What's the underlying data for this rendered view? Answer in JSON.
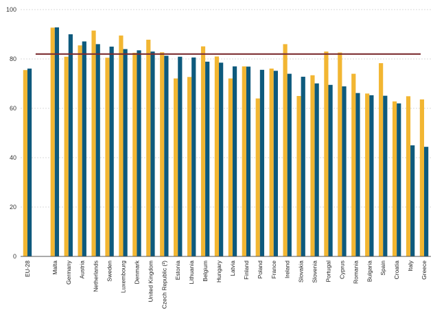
{
  "chart_data": {
    "type": "bar",
    "ylim": [
      0,
      100
    ],
    "yticks": [
      0,
      20,
      40,
      60,
      80,
      100
    ],
    "grid": true,
    "reference_line": 82,
    "categories": [
      "EU-28",
      "Malta",
      "Germany",
      "Austria",
      "Netherlands",
      "Sweden",
      "Luxembourg",
      "Denmark",
      "United Kingdom",
      "Czech Republic (²)",
      "Estonia",
      "Lithuania",
      "Belgium",
      "Hungary",
      "Latvia",
      "Finland",
      "Poland",
      "France",
      "Ireland",
      "Slovakia",
      "Slovenia",
      "Portugal",
      "Cyprus",
      "Romania",
      "Bulgaria",
      "Spain",
      "Croatia",
      "Italy",
      "Greece"
    ],
    "series": [
      {
        "color": "#f2b632",
        "values": [
          75.5,
          92.7,
          80.9,
          85.5,
          91.5,
          80.5,
          89.5,
          82.5,
          87.8,
          82.7,
          72.1,
          72.7,
          85.1,
          81.0,
          72.1,
          77.0,
          64.0,
          76.1,
          86.0,
          65.0,
          73.4,
          83.0,
          82.6,
          74.0,
          66.0,
          78.3,
          62.8,
          64.9,
          63.6
        ]
      },
      {
        "color": "#0e5a7d",
        "values": [
          76.1,
          92.8,
          90.0,
          87.1,
          86.0,
          85.0,
          84.0,
          83.5,
          83.0,
          81.3,
          80.9,
          80.6,
          78.9,
          78.5,
          77.0,
          76.9,
          75.6,
          75.2,
          74.0,
          72.8,
          70.1,
          69.5,
          68.9,
          66.2,
          65.3,
          65.1,
          62.0,
          45.0,
          44.4
        ]
      }
    ]
  },
  "colors": {
    "grid": "#cccccc",
    "axis": "#555555",
    "reference_line": "#7b2d31"
  }
}
